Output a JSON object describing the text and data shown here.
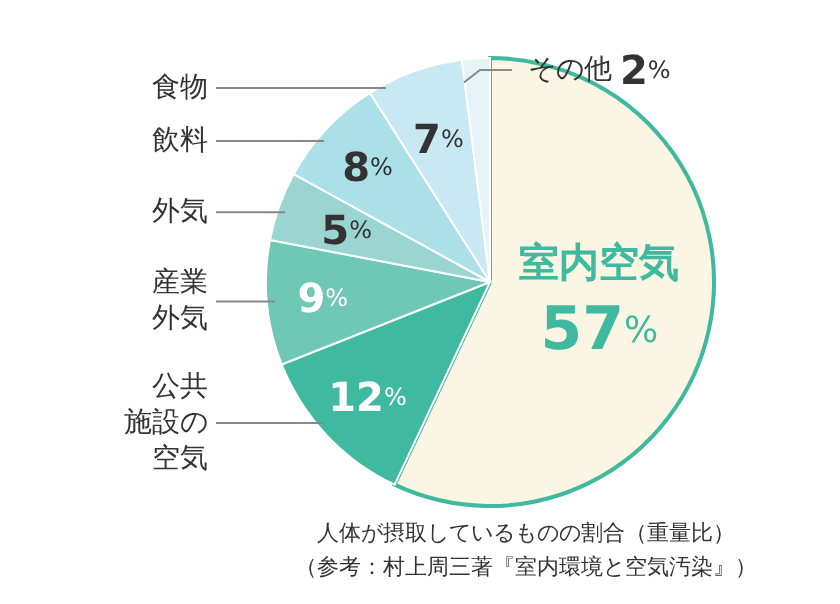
{
  "chart_data": {
    "type": "pie",
    "title": "人体が摂取しているものの割合（重量比）",
    "annotations": [
      "（参考：村上周三著『室内環境と空気汚染』）"
    ],
    "categories": [
      "室内空気",
      "公共施設の空気",
      "産業外気",
      "外気",
      "飲料",
      "食物",
      "その他"
    ],
    "values": [
      57,
      12,
      9,
      5,
      8,
      7,
      2
    ],
    "value_labels": [
      "57%",
      "12%",
      "9%",
      "5%",
      "8%",
      "7%",
      "2%"
    ],
    "colors": [
      "#fbf5e4",
      "#3fb99f",
      "#6fc8b6",
      "#9bd5d2",
      "#ace0e8",
      "#c8e8f3",
      "#e6f3f9"
    ],
    "legend": false
  }
}
